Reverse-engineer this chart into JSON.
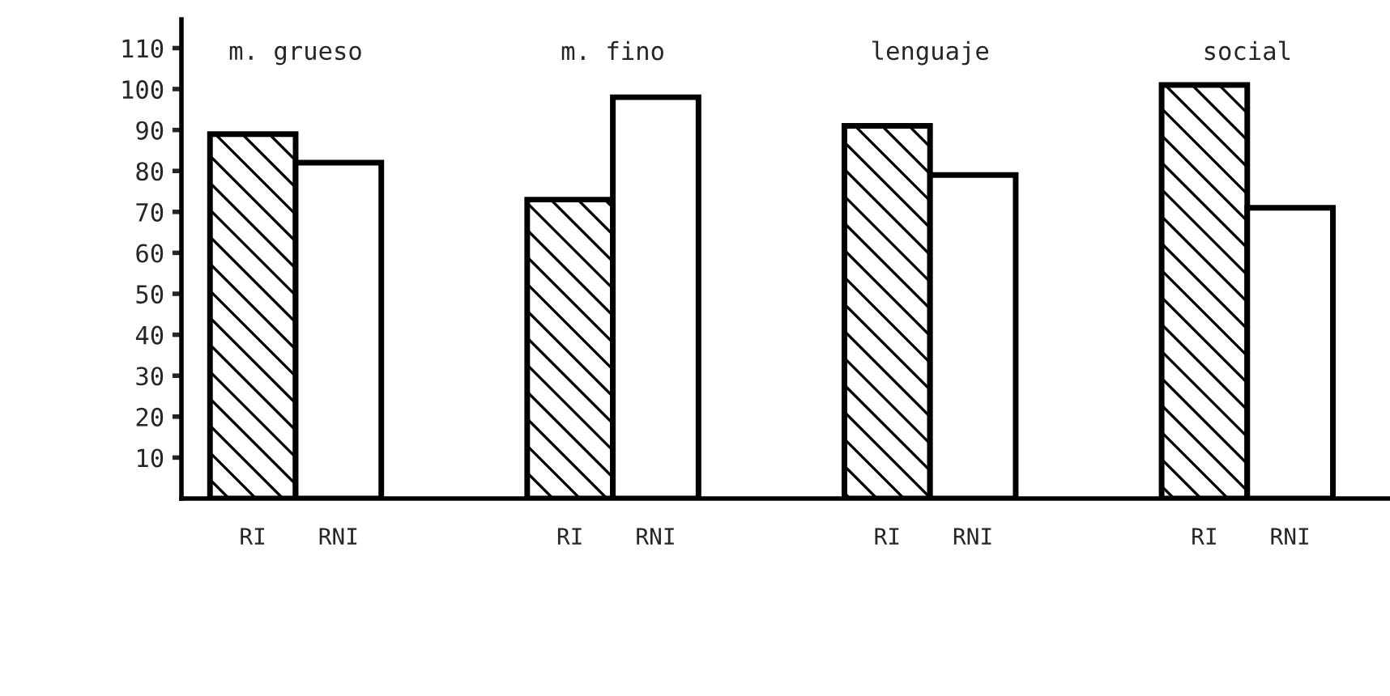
{
  "chart_data": {
    "type": "bar",
    "categories": [
      "m. grueso",
      "m. fino",
      "lenguaje",
      "social"
    ],
    "series": [
      {
        "name": "RI",
        "color": "#000000",
        "values": [
          89,
          73,
          91,
          101
        ]
      },
      {
        "name": "RNI",
        "color": "#ffffff",
        "values": [
          82,
          98,
          79,
          71
        ]
      }
    ],
    "ylim": [
      0,
      117
    ],
    "yticks": [
      10,
      20,
      30,
      40,
      50,
      60,
      70,
      80,
      90,
      100,
      110
    ],
    "grid": false,
    "legend": false
  }
}
